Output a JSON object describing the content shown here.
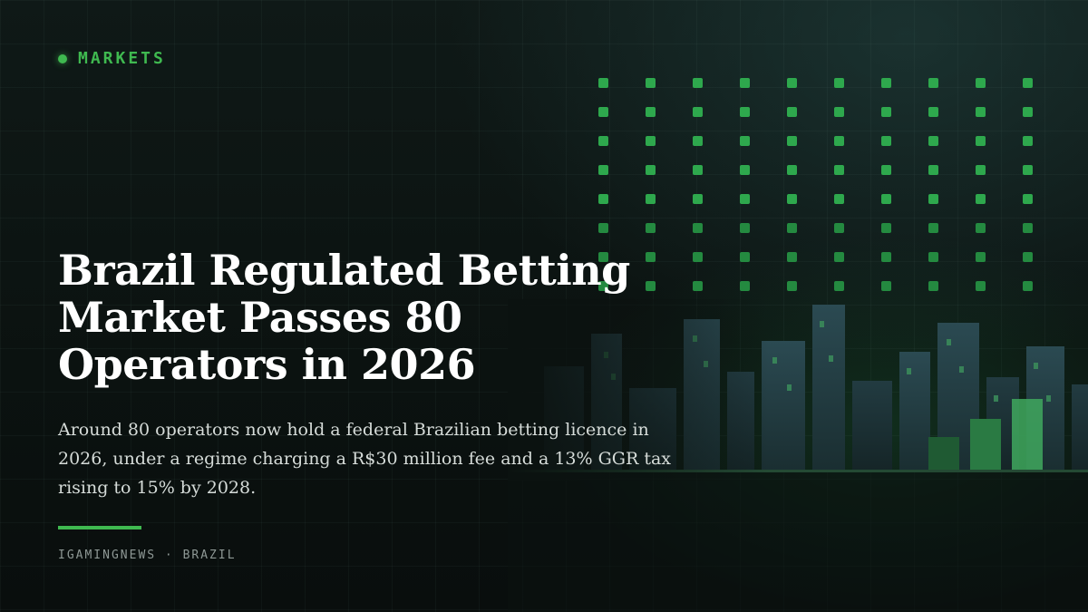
{
  "kicker": "MARKETS",
  "headline": "Brazil Regulated Betting Market Passes 80 Operators in 2026",
  "summary": "Around 80 operators now hold a federal Brazilian betting licence in 2026, under a regime charging a R$30 million fee and a 13% GGR tax rising to 15% by 2028.",
  "byline": "IGAMINGNEWS · BRAZIL",
  "colors": {
    "accent": "#3fb950",
    "background": "#0b1210",
    "headline": "#ffffff",
    "body_text": "#d6dcd9",
    "byline": "#8e9895"
  },
  "decor": {
    "dot_grid_icon": "dot-matrix",
    "skyline_icon": "city-skyline"
  }
}
